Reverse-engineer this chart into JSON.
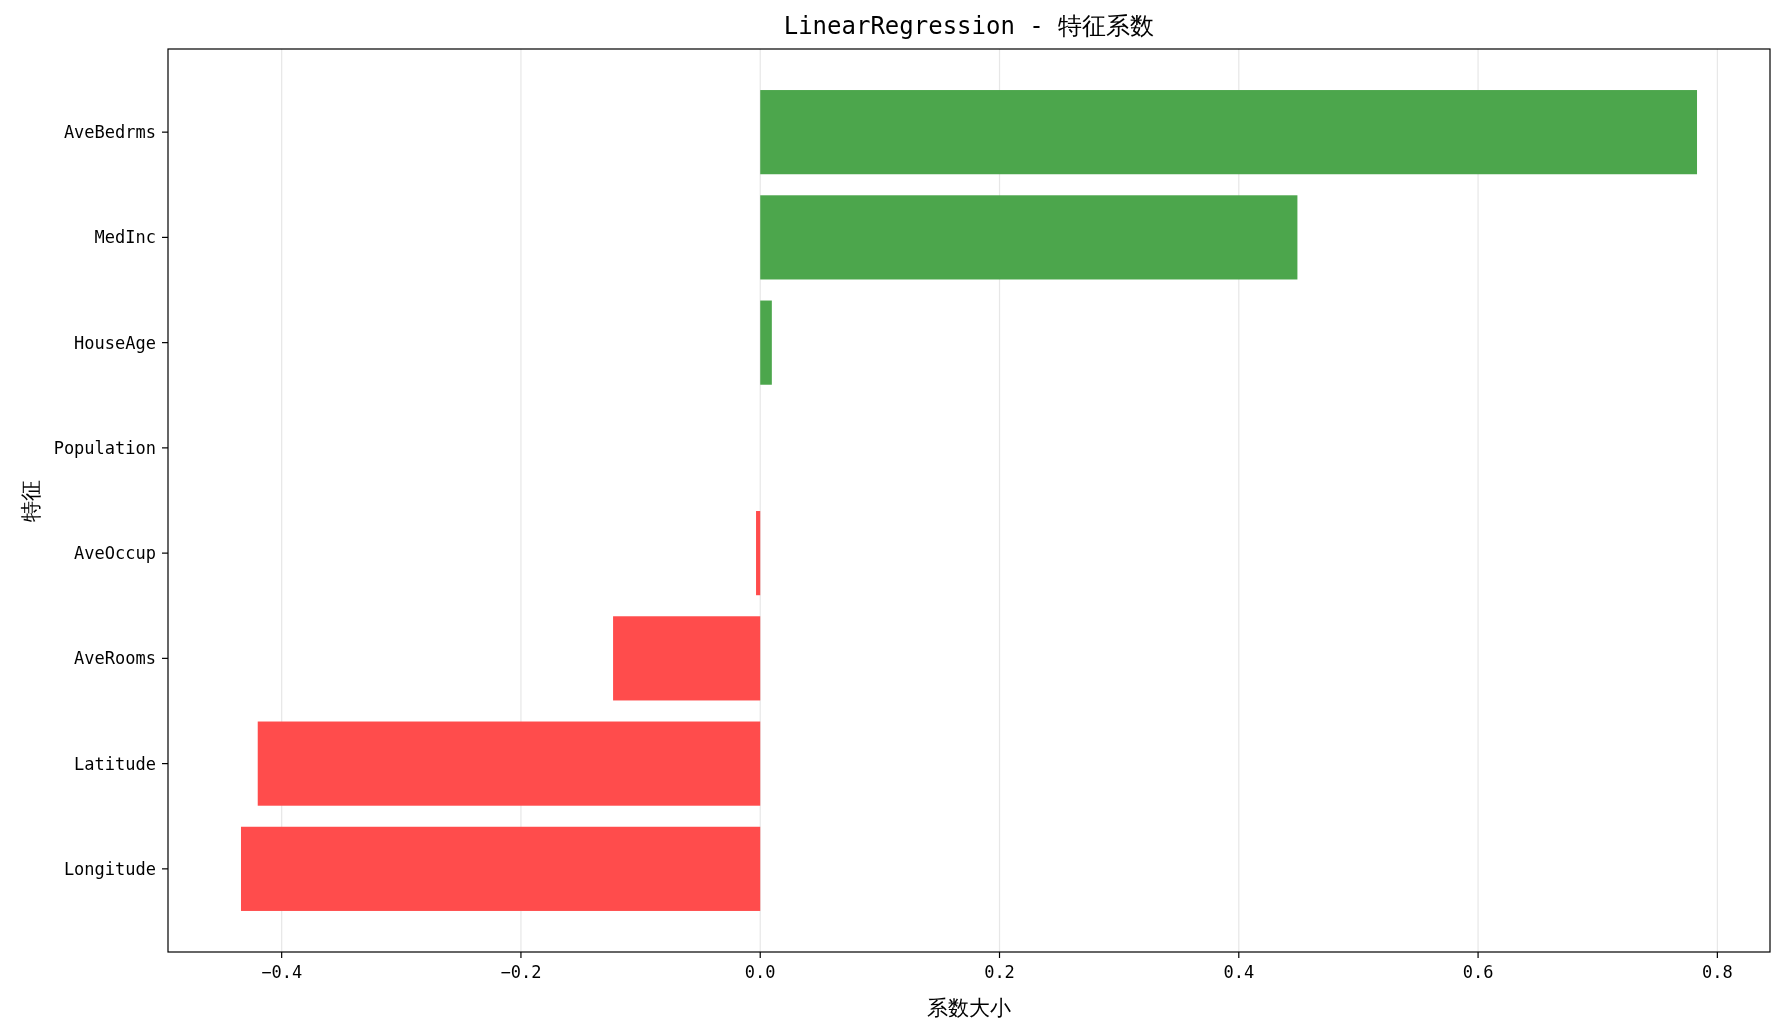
{
  "chart_data": {
    "type": "bar",
    "orientation": "horizontal",
    "title": "LinearRegression - 特征系数",
    "xlabel": "系数大小",
    "ylabel": "特征",
    "categories": [
      "AveBedrms",
      "MedInc",
      "HouseAge",
      "Population",
      "AveOccup",
      "AveRooms",
      "Latitude",
      "Longitude"
    ],
    "values": [
      0.783,
      0.449,
      0.0097,
      0,
      -0.0035,
      -0.123,
      -0.42,
      -0.434
    ],
    "colors": [
      "#4ca64c",
      "#4ca64c",
      "#4ca64c",
      "#4ca64c",
      "#ff4c4c",
      "#ff4c4c",
      "#ff4c4c",
      "#ff4c4c"
    ],
    "xlim": [
      -0.495,
      0.844
    ],
    "xticks": [
      {
        "value": -0.4,
        "label": "−0.4"
      },
      {
        "value": -0.2,
        "label": "−0.2"
      },
      {
        "value": 0,
        "label": "0.0"
      },
      {
        "value": 0.2,
        "label": "0.2"
      },
      {
        "value": 0.4,
        "label": "0.4"
      },
      {
        "value": 0.6,
        "label": "0.6"
      },
      {
        "value": 0.8,
        "label": "0.8"
      }
    ],
    "grid": "x"
  }
}
